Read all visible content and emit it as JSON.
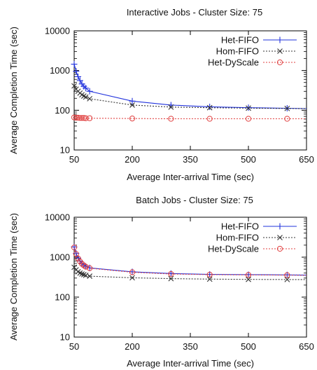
{
  "chart_data": [
    {
      "type": "line",
      "title": "Interactive Jobs - Cluster Size: 75",
      "xlabel": "Average Inter-arrival Time (sec)",
      "ylabel": "Average Completion Time (sec)",
      "xlim": [
        50,
        650
      ],
      "ylim": [
        10,
        10000
      ],
      "yscale": "log",
      "xticks": [
        50,
        200,
        350,
        500,
        650
      ],
      "yticks": [
        10,
        100,
        1000,
        10000
      ],
      "legend": "top-right",
      "grid": false,
      "series": [
        {
          "name": "Het-FIFO",
          "color": "#2233dd",
          "marker": "plus",
          "dash": "solid",
          "x": [
            50,
            55,
            60,
            65,
            70,
            75,
            80,
            90,
            200,
            300,
            400,
            500,
            600,
            650
          ],
          "y": [
            1450,
            960,
            700,
            560,
            460,
            400,
            360,
            300,
            170,
            135,
            122,
            116,
            112,
            110
          ]
        },
        {
          "name": "Hom-FIFO",
          "color": "#333333",
          "marker": "x",
          "dash": "dotted",
          "x": [
            50,
            55,
            60,
            65,
            70,
            75,
            80,
            90,
            200,
            300,
            400,
            500,
            600,
            650
          ],
          "y": [
            410,
            340,
            300,
            270,
            245,
            228,
            215,
            195,
            135,
            120,
            116,
            113,
            111,
            110
          ]
        },
        {
          "name": "Het-DyScale",
          "color": "#e04040",
          "marker": "circle",
          "dash": "dotted",
          "x": [
            50,
            55,
            60,
            65,
            70,
            75,
            80,
            90,
            200,
            300,
            400,
            500,
            600,
            650
          ],
          "y": [
            66,
            65,
            65,
            64,
            64,
            64,
            63,
            63,
            62,
            61,
            61,
            61,
            61,
            61
          ]
        }
      ]
    },
    {
      "type": "line",
      "title": "Batch Jobs - Cluster Size: 75",
      "xlabel": "Average Inter-arrival Time (sec)",
      "ylabel": "Average Completion Time (sec)",
      "xlim": [
        50,
        650
      ],
      "ylim": [
        10,
        10000
      ],
      "yscale": "log",
      "xticks": [
        50,
        200,
        350,
        500,
        650
      ],
      "yticks": [
        10,
        100,
        1000,
        10000
      ],
      "legend": "top-right",
      "grid": false,
      "series": [
        {
          "name": "Het-FIFO",
          "color": "#2233dd",
          "marker": "plus",
          "dash": "solid",
          "x": [
            50,
            55,
            60,
            65,
            70,
            75,
            80,
            90,
            200,
            300,
            400,
            500,
            600,
            650
          ],
          "y": [
            1800,
            1250,
            950,
            800,
            700,
            640,
            590,
            540,
            430,
            390,
            370,
            365,
            360,
            355
          ]
        },
        {
          "name": "Hom-FIFO",
          "color": "#333333",
          "marker": "x",
          "dash": "dotted",
          "x": [
            50,
            55,
            60,
            65,
            70,
            75,
            80,
            90,
            200,
            300,
            400,
            500,
            600,
            650
          ],
          "y": [
            560,
            480,
            430,
            400,
            380,
            365,
            352,
            335,
            305,
            290,
            282,
            278,
            276,
            275
          ]
        },
        {
          "name": "Het-DyScale",
          "color": "#e04040",
          "marker": "circle",
          "dash": "dotted",
          "x": [
            50,
            55,
            60,
            65,
            70,
            75,
            80,
            90,
            200,
            300,
            400,
            500,
            600,
            650
          ],
          "y": [
            1750,
            1200,
            930,
            780,
            680,
            620,
            575,
            530,
            420,
            380,
            365,
            360,
            355,
            350
          ]
        }
      ]
    }
  ]
}
